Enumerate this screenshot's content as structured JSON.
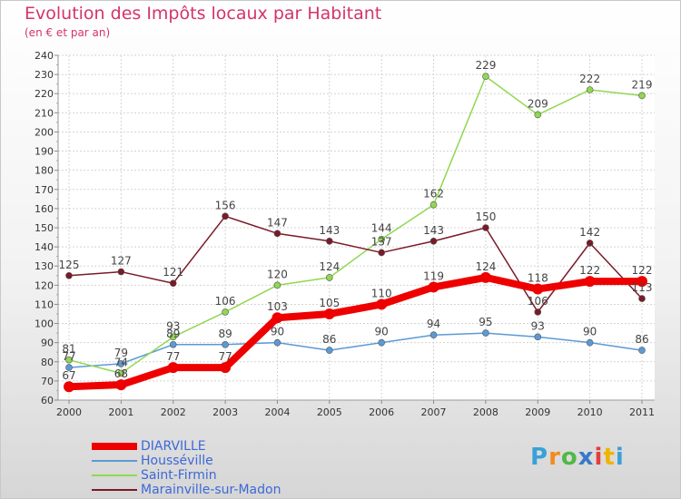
{
  "header": {
    "title": "Evolution des Impôts locaux par Habitant",
    "subtitle": "(en € et par an)"
  },
  "brand": {
    "letters": [
      "P",
      "r",
      "o",
      "x",
      "i",
      "t",
      "i"
    ],
    "colors": [
      "#3aa0d8",
      "#f08c1e",
      "#52b848",
      "#3a78c8",
      "#e53c3c",
      "#f0b400",
      "#3aa0d8"
    ]
  },
  "chart_data": {
    "type": "line",
    "title": "Evolution des Impôts locaux par Habitant",
    "subtitle": "(en € et par an)",
    "xlabel": "",
    "ylabel": "",
    "x": [
      "2000",
      "2001",
      "2002",
      "2003",
      "2004",
      "2005",
      "2006",
      "2007",
      "2008",
      "2009",
      "2010",
      "2011"
    ],
    "ylim": [
      60,
      240
    ],
    "yticks": [
      60,
      70,
      80,
      90,
      100,
      110,
      120,
      130,
      140,
      150,
      160,
      170,
      180,
      190,
      200,
      210,
      220,
      230,
      240
    ],
    "grid": true,
    "legend_position": "bottom-left",
    "series": [
      {
        "name": "DIARVILLE",
        "color": "#ee0000",
        "thick": true,
        "values": [
          67,
          68,
          77,
          77,
          103,
          105,
          110,
          119,
          124,
          118,
          122,
          122
        ],
        "labels": [
          "67",
          "68",
          "77",
          "77",
          "103",
          "105",
          "110",
          "119",
          "124",
          "118",
          "122",
          "122"
        ]
      },
      {
        "name": "Housséville",
        "color": "#5b9ad5",
        "values": [
          77,
          79,
          89,
          89,
          90,
          86,
          90,
          94,
          95,
          93,
          90,
          86
        ],
        "labels": [
          "77",
          "79",
          "89",
          "89",
          "90",
          "86",
          "90",
          "94",
          "95",
          "93",
          "90",
          "86"
        ]
      },
      {
        "name": "Saint-Firmin",
        "color": "#90d850",
        "values": [
          81,
          74,
          93,
          106,
          120,
          124,
          144,
          162,
          229,
          209,
          222,
          219
        ],
        "labels": [
          "81",
          "74",
          "93",
          "106",
          "120",
          "124",
          "144",
          "162",
          "229",
          "209",
          "222",
          "219"
        ]
      },
      {
        "name": "Marainville-sur-Madon",
        "color": "#7a1a28",
        "values": [
          125,
          127,
          121,
          156,
          147,
          143,
          137,
          143,
          150,
          106,
          142,
          113
        ],
        "labels": [
          "125",
          "127",
          "121",
          "156",
          "147",
          "143",
          "137",
          "143",
          "150",
          "106",
          "142",
          "113"
        ]
      }
    ]
  }
}
